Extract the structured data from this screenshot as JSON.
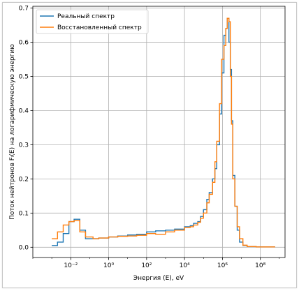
{
  "chart_data": {
    "type": "line",
    "step": true,
    "xscale": "log",
    "xlim": [
      0.0001,
      2000000000
    ],
    "ylim": [
      -0.03,
      0.705
    ],
    "xlabel": "Энергия (E), eV",
    "ylabel": "Поток нейтронов Fₗ(E) на логарифмическую энергию",
    "xticks": [
      {
        "value": 0.01,
        "label": "10⁻²"
      },
      {
        "value": 1,
        "label": "10⁰"
      },
      {
        "value": 100,
        "label": "10²"
      },
      {
        "value": 10000,
        "label": "10⁴"
      },
      {
        "value": 1000000,
        "label": "10⁶"
      },
      {
        "value": 100000000,
        "label": "10⁸"
      }
    ],
    "yticks": [
      0.0,
      0.1,
      0.2,
      0.3,
      0.4,
      0.5,
      0.6,
      0.7
    ],
    "ytick_labels": [
      "0.0",
      "0.1",
      "0.2",
      "0.3",
      "0.4",
      "0.5",
      "0.6",
      "0.7"
    ],
    "grid": true,
    "legend_position": "top-left",
    "series": [
      {
        "name": "Реальный спектр",
        "color": "#1f77b4",
        "x": [
          0.001,
          0.002,
          0.004,
          0.008,
          0.015,
          0.03,
          0.06,
          0.15,
          0.3,
          1,
          3,
          10,
          30,
          100,
          300,
          1000,
          3000,
          10000,
          20000,
          30000,
          50000,
          70000,
          100000,
          150000,
          200000,
          300000,
          400000,
          500000,
          700000,
          900000,
          1200000,
          1500000,
          1800000,
          2200000,
          2600000,
          3000000,
          3500000,
          4500000,
          6000000,
          8000000,
          12000000,
          20000000,
          60000000,
          300000000
        ],
        "y": [
          0.005,
          0.015,
          0.04,
          0.075,
          0.082,
          0.05,
          0.025,
          0.025,
          0.027,
          0.03,
          0.033,
          0.036,
          0.038,
          0.045,
          0.048,
          0.05,
          0.053,
          0.06,
          0.063,
          0.07,
          0.075,
          0.09,
          0.11,
          0.14,
          0.16,
          0.2,
          0.23,
          0.3,
          0.39,
          0.51,
          0.62,
          0.64,
          0.67,
          0.6,
          0.52,
          0.37,
          0.21,
          0.12,
          0.05,
          0.015,
          0.005,
          0.002,
          0.001,
          0.001
        ]
      },
      {
        "name": "Восстановленный спектр",
        "color": "#ff7f0e",
        "x": [
          0.001,
          0.002,
          0.004,
          0.008,
          0.015,
          0.03,
          0.06,
          0.15,
          0.3,
          1,
          3,
          10,
          30,
          100,
          300,
          1000,
          3000,
          10000,
          20000,
          30000,
          50000,
          70000,
          100000,
          150000,
          200000,
          300000,
          400000,
          500000,
          700000,
          900000,
          1200000,
          1500000,
          1800000,
          2200000,
          2600000,
          3000000,
          3500000,
          4500000,
          6000000,
          8000000,
          12000000,
          20000000,
          60000000,
          300000000
        ],
        "y": [
          0.025,
          0.045,
          0.065,
          0.075,
          0.078,
          0.045,
          0.03,
          0.025,
          0.027,
          0.03,
          0.032,
          0.033,
          0.035,
          0.04,
          0.038,
          0.045,
          0.05,
          0.058,
          0.06,
          0.065,
          0.073,
          0.085,
          0.1,
          0.13,
          0.155,
          0.19,
          0.25,
          0.31,
          0.42,
          0.55,
          0.59,
          0.64,
          0.67,
          0.66,
          0.5,
          0.36,
          0.2,
          0.12,
          0.06,
          0.025,
          0.006,
          0.002,
          0.001,
          0.001
        ]
      }
    ]
  }
}
